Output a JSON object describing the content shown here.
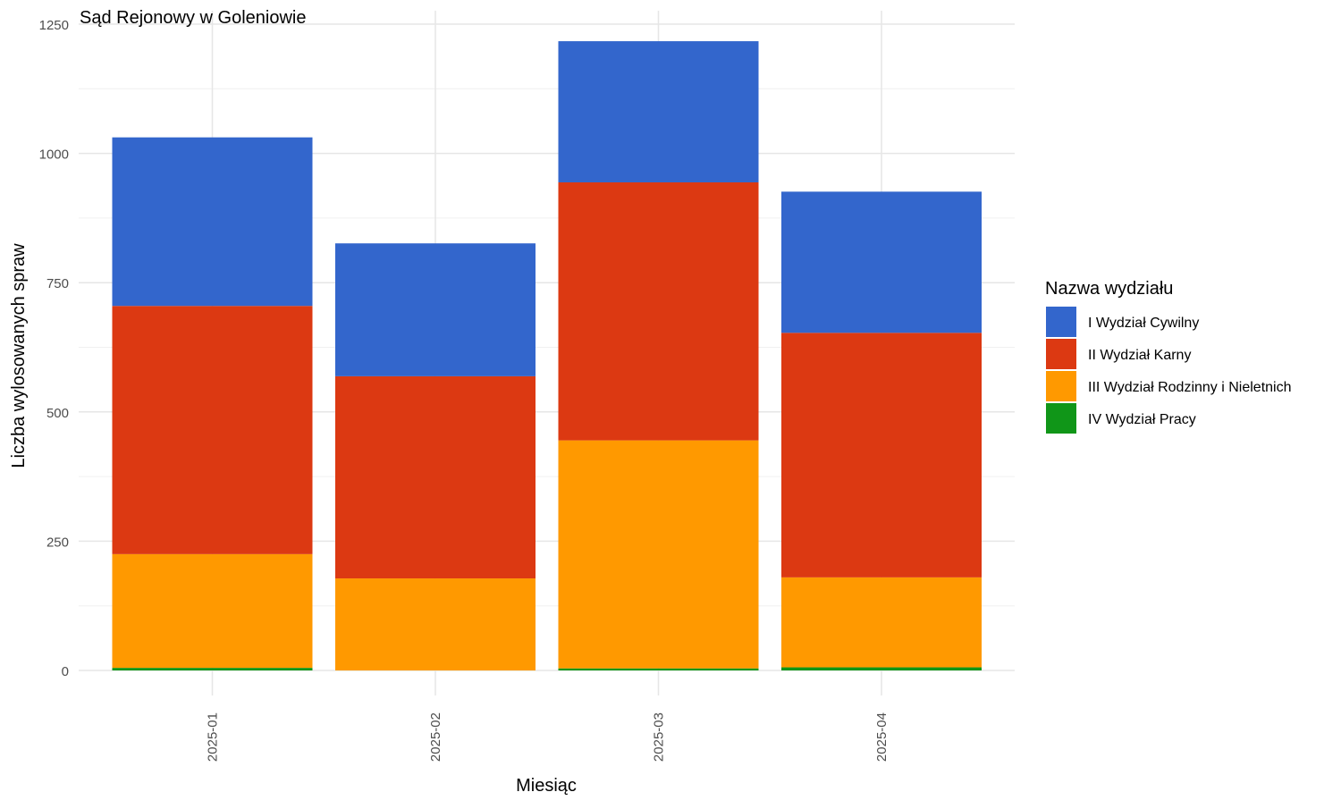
{
  "chart_data": {
    "type": "bar",
    "stacked": true,
    "title": "Sąd Rejonowy w Goleniowie",
    "xlabel": "Miesiąc",
    "ylabel": "Liczba wylosowanych spraw",
    "categories": [
      "2025-01",
      "2025-02",
      "2025-03",
      "2025-04"
    ],
    "ylim": [
      0,
      1250
    ],
    "yticks": [
      0,
      250,
      500,
      750,
      1000,
      1250
    ],
    "grid": true,
    "legend": {
      "title": "Nazwa wydziału",
      "position": "right"
    },
    "series": [
      {
        "name": "I Wydział Cywilny",
        "color": "#3366CC",
        "values": [
          326,
          257,
          273,
          273
        ]
      },
      {
        "name": "II Wydział Karny",
        "color": "#DC3912",
        "values": [
          480,
          391,
          499,
          473
        ]
      },
      {
        "name": "III Wydział Rodzinny i Nieletnich",
        "color": "#FF9900",
        "values": [
          220,
          178,
          441,
          174
        ]
      },
      {
        "name": "IV Wydział Pracy",
        "color": "#109618",
        "values": [
          5,
          0,
          4,
          6
        ]
      }
    ]
  }
}
